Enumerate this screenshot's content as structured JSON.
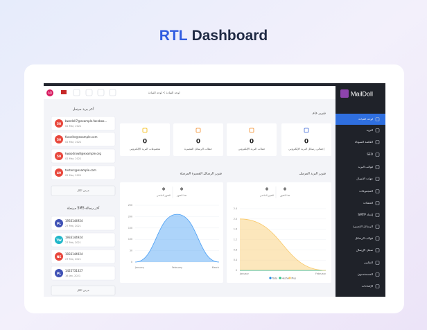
{
  "header": {
    "accent": "RTL",
    "title": "Dashboard"
  },
  "sidebar": {
    "brand": "MailDoll",
    "menu": [
      "لوحة القيادة",
      "البريد",
      "القائمة السوداء",
      "SEO",
      "قوالب البريد",
      "جهات الاتصال",
      "المجموعات",
      "الحملات",
      "إعداد SMTP",
      "الرسائل القصيرة",
      "قوالب الرسائل",
      "سجل الإرسال",
      "التقارير",
      "المستخدمون",
      "الإعدادات"
    ]
  },
  "topbar": {
    "avatar": "AD",
    "breadcrumb": "لوحة القيادة > لوحة القيادة"
  },
  "emails": {
    "title": "آخر بريد مرسل",
    "items": [
      {
        "badge": "58",
        "address": "bwedell7@example.faceboo...",
        "date": "02 Mar, 2021"
      },
      {
        "badge": "50",
        "address": "favorite@example.com",
        "date": "02 Mar, 2021"
      },
      {
        "badge": "50",
        "address": "kwoodrow8@example.org",
        "date": "02 Mar, 2021"
      },
      {
        "badge": "49",
        "address": "testers@example.com",
        "date": "02 Mar, 2021"
      }
    ],
    "button": "عرض الكل"
  },
  "sms": {
    "title": "آخر رسالة SMS مرسلة",
    "items": [
      {
        "badge": "PL",
        "color": "#3f51b5",
        "number": "1933144924",
        "date": "27 Feb, 2021"
      },
      {
        "badge": "TW",
        "color": "#1fb6c9",
        "number": "1933144924",
        "date": "27 Feb, 2021"
      },
      {
        "badge": "NE",
        "color": "#e8473c",
        "number": "1933144924",
        "date": "27 Feb, 2021"
      },
      {
        "badge": "PL",
        "color": "#3f51b5",
        "number": "1425731327",
        "date": "16 Jan, 2021"
      }
    ],
    "button": "عرض الكل"
  },
  "overview": {
    "title": "تقرير عام",
    "cards": [
      {
        "value": "0",
        "label": "مجموعات البريد الإلكتروني",
        "color": "#f5b800"
      },
      {
        "value": "0",
        "label": "حملات الرسائل القصيرة",
        "color": "#f28c28"
      },
      {
        "value": "0",
        "label": "حملات البريد الإلكتروني",
        "color": "#f28c28"
      },
      {
        "value": "0",
        "label": "إجمالي رسائل البريد الإلكتروني",
        "color": "#3f6ad8"
      }
    ]
  },
  "charts": [
    {
      "type": "area",
      "title": "تقرير الرسائل القصيرة المرسلة",
      "stats": [
        {
          "value": "0",
          "label": "الشهر الماضي"
        },
        {
          "value": "0",
          "label": "هذا الشهر"
        }
      ],
      "categories": [
        "January",
        "February",
        "March"
      ],
      "series": [
        {
          "name": "SMS",
          "color": "#4a9ff5",
          "values": [
            0,
            210,
            0
          ]
        }
      ],
      "legend": false,
      "ylim": [
        0,
        250
      ],
      "yticks": [
        0,
        50,
        100,
        150,
        200,
        250
      ]
    },
    {
      "type": "area",
      "title": "تقرير البريد المرسل",
      "stats": [
        {
          "value": "0",
          "label": "الشهر الماضي"
        },
        {
          "value": "0",
          "label": "هذا الشهر"
        }
      ],
      "categories": [
        "January",
        "February"
      ],
      "series": [
        {
          "name": "Todo",
          "color": "#1e88e5",
          "values": [
            0,
            0
          ]
        },
        {
          "name": "Hecho",
          "color": "#26c281",
          "values": [
            0,
            0
          ]
        },
        {
          "name": "Plus",
          "color": "#f9c96a",
          "values": [
            2,
            0
          ]
        }
      ],
      "legend": true,
      "ylim": [
        0,
        2.4
      ],
      "yticks": [
        0,
        0.4,
        0.8,
        1.2,
        1.6,
        {
          "value": 2,
          "label": "2.0"
        },
        2.4
      ]
    }
  ]
}
